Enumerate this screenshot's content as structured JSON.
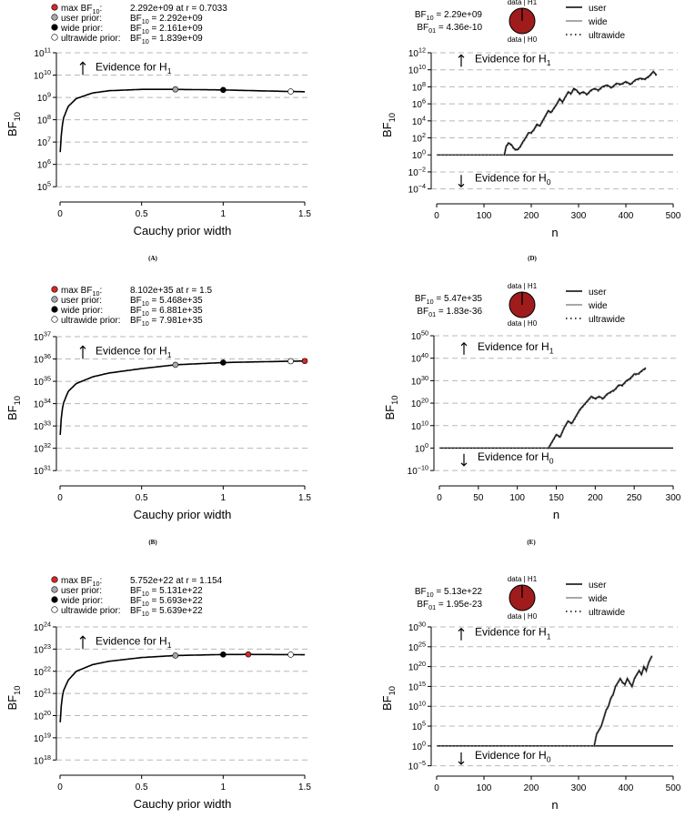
{
  "chart_data": [
    {
      "id": "A",
      "panel": "(A)",
      "type": "line",
      "kind": "robustness",
      "xlabel": "Cauchy prior width",
      "ylabel": "BF10",
      "xlim": [
        0,
        1.5
      ],
      "ylim_log10": [
        4.6,
        11
      ],
      "x_ticks": [
        "0",
        "0.5",
        "1",
        "1.5"
      ],
      "y_exponents": [
        5,
        6,
        7,
        8,
        9,
        10,
        11
      ],
      "evidence_label": "Evidence for H1",
      "legend": [
        {
          "label": "max BF10:",
          "value": "2.292e+09 at r = 0.7033",
          "color": "#d62728"
        },
        {
          "label": "user prior:",
          "value": "BF10 = 2.292e+09",
          "color": "#aaaaaa"
        },
        {
          "label": "wide prior:",
          "value": "BF10 = 2.161e+09",
          "color": "#000000"
        },
        {
          "label": "ultrawide prior:",
          "value": "BF10 = 1.839e+09",
          "color": "#ffffff"
        }
      ],
      "curve": {
        "r": [
          0.001,
          0.01,
          0.02,
          0.05,
          0.1,
          0.2,
          0.3,
          0.5,
          0.7033,
          1.0,
          1.2,
          1.414,
          1.5
        ],
        "log10_bf": [
          6.55,
          7.55,
          8.05,
          8.6,
          8.95,
          9.2,
          9.3,
          9.36,
          9.36,
          9.335,
          9.3,
          9.265,
          9.255
        ]
      },
      "points": [
        {
          "name": "max",
          "r": 0.7033,
          "log10_bf": 9.36,
          "color": "#d62728",
          "show": false
        },
        {
          "name": "user",
          "r": 0.7071,
          "log10_bf": 9.36,
          "color": "#aaaaaa",
          "show": true
        },
        {
          "name": "wide",
          "r": 1.0,
          "log10_bf": 9.335,
          "color": "#000000",
          "show": true
        },
        {
          "name": "ultrawide",
          "r": 1.414,
          "log10_bf": 9.265,
          "color": "#ffffff",
          "show": true
        }
      ]
    },
    {
      "id": "B",
      "panel": "(B)",
      "type": "line",
      "kind": "robustness",
      "xlabel": "Cauchy prior width",
      "ylabel": "BF10",
      "xlim": [
        0,
        1.5
      ],
      "ylim_log10": [
        30.6,
        37
      ],
      "x_ticks": [
        "0",
        "0.5",
        "1",
        "1.5"
      ],
      "y_exponents": [
        31,
        32,
        33,
        34,
        35,
        36,
        37
      ],
      "evidence_label": "Evidence for H1",
      "legend": [
        {
          "label": "max BF10:",
          "value": "8.102e+35 at r = 1.5",
          "color": "#d62728"
        },
        {
          "label": "user prior:",
          "value": "BF10 = 5.468e+35",
          "color": "#aaaaaa"
        },
        {
          "label": "wide prior:",
          "value": "BF10 = 6.881e+35",
          "color": "#000000"
        },
        {
          "label": "ultrawide prior:",
          "value": "BF10 = 7.981e+35",
          "color": "#ffffff"
        }
      ],
      "curve": {
        "r": [
          0.001,
          0.01,
          0.02,
          0.05,
          0.1,
          0.2,
          0.3,
          0.5,
          0.7071,
          1.0,
          1.2,
          1.414,
          1.5
        ],
        "log10_bf": [
          32.6,
          33.6,
          34.0,
          34.55,
          34.9,
          35.2,
          35.37,
          35.57,
          35.74,
          35.84,
          35.87,
          35.9,
          35.91
        ]
      },
      "points": [
        {
          "name": "max",
          "r": 1.5,
          "log10_bf": 35.91,
          "color": "#d62728",
          "show": true
        },
        {
          "name": "user",
          "r": 0.7071,
          "log10_bf": 35.74,
          "color": "#aaaaaa",
          "show": true
        },
        {
          "name": "wide",
          "r": 1.0,
          "log10_bf": 35.84,
          "color": "#000000",
          "show": true
        },
        {
          "name": "ultrawide",
          "r": 1.414,
          "log10_bf": 35.9,
          "color": "#ffffff",
          "show": true
        }
      ]
    },
    {
      "id": "C",
      "panel": "(C)",
      "type": "line",
      "kind": "robustness",
      "xlabel": "Cauchy prior width",
      "ylabel": "BF10",
      "xlim": [
        0,
        1.5
      ],
      "ylim_log10": [
        17.6,
        24
      ],
      "x_ticks": [
        "0",
        "0.5",
        "1",
        "1.5"
      ],
      "y_exponents": [
        18,
        19,
        20,
        21,
        22,
        23,
        24
      ],
      "evidence_label": "Evidence for H1",
      "legend": [
        {
          "label": "max BF10:",
          "value": "5.752e+22 at r = 1.154",
          "color": "#d62728"
        },
        {
          "label": "user prior:",
          "value": "BF10 = 5.131e+22",
          "color": "#aaaaaa"
        },
        {
          "label": "wide prior:",
          "value": "BF10 = 5.693e+22",
          "color": "#000000"
        },
        {
          "label": "ultrawide prior:",
          "value": "BF10 = 5.639e+22",
          "color": "#ffffff"
        }
      ],
      "curve": {
        "r": [
          0.001,
          0.01,
          0.02,
          0.05,
          0.1,
          0.2,
          0.3,
          0.5,
          0.7071,
          1.0,
          1.154,
          1.414,
          1.5
        ],
        "log10_bf": [
          19.7,
          20.7,
          21.1,
          21.6,
          22.0,
          22.3,
          22.45,
          22.62,
          22.71,
          22.755,
          22.76,
          22.751,
          22.745
        ]
      },
      "points": [
        {
          "name": "max",
          "r": 1.154,
          "log10_bf": 22.76,
          "color": "#d62728",
          "show": true
        },
        {
          "name": "user",
          "r": 0.7071,
          "log10_bf": 22.71,
          "color": "#aaaaaa",
          "show": true
        },
        {
          "name": "wide",
          "r": 1.0,
          "log10_bf": 22.755,
          "color": "#000000",
          "show": true
        },
        {
          "name": "ultrawide",
          "r": 1.414,
          "log10_bf": 22.751,
          "color": "#ffffff",
          "show": true
        }
      ]
    },
    {
      "id": "D",
      "panel": "(D)",
      "type": "line",
      "kind": "sequential",
      "xlabel": "n",
      "ylabel": "BF10",
      "xlim": [
        0,
        500
      ],
      "ylim_log10": [
        -5,
        12
      ],
      "x_ticks": [
        0,
        100,
        200,
        300,
        400,
        500
      ],
      "y_exponents": [
        -4,
        -2,
        0,
        2,
        4,
        6,
        8,
        10,
        12
      ],
      "evidence_h1": "Evidence for H1",
      "evidence_h0": "Evidence for H0",
      "h1_log10": 11,
      "h0_log10": -3,
      "bf10_text": "BF10 = 2.29e+09",
      "bf01_text": "BF01 = 4.36e-10",
      "pie_top": "data | H1",
      "pie_bottom": "data | H0",
      "pie_h1_fraction": 1.0,
      "legend": [
        "user",
        "wide",
        "ultrawide"
      ],
      "series": {
        "n_end": 465,
        "flat_until": 143,
        "n": [
          143,
          147,
          152,
          158,
          164,
          170,
          176,
          182,
          188,
          194,
          200,
          206,
          212,
          218,
          224,
          230,
          236,
          242,
          248,
          254,
          260,
          266,
          272,
          278,
          284,
          290,
          296,
          302,
          310,
          318,
          326,
          334,
          342,
          350,
          360,
          370,
          380,
          390,
          400,
          410,
          420,
          430,
          440,
          450,
          458,
          465
        ],
        "log10_bf": [
          0,
          1.0,
          1.4,
          1.2,
          0.7,
          0.6,
          0.9,
          1.5,
          2.0,
          2.6,
          2.6,
          3.0,
          3.6,
          3.4,
          4.0,
          4.6,
          5.2,
          5.0,
          5.5,
          6.0,
          6.6,
          6.2,
          6.8,
          7.4,
          7.2,
          7.8,
          7.6,
          7.2,
          7.4,
          7.1,
          7.6,
          7.8,
          7.6,
          8.0,
          8.2,
          7.9,
          8.4,
          8.3,
          8.6,
          8.3,
          8.8,
          9.0,
          8.9,
          9.3,
          9.8,
          9.36
        ]
      }
    },
    {
      "id": "E",
      "panel": "(E)",
      "type": "line",
      "kind": "sequential",
      "xlabel": "n",
      "ylabel": "BF10",
      "xlim": [
        0,
        300
      ],
      "ylim_log10": [
        -14,
        50
      ],
      "x_ticks": [
        0,
        50,
        100,
        150,
        200,
        250,
        300
      ],
      "y_exponents": [
        -10,
        0,
        10,
        20,
        30,
        40,
        50
      ],
      "evidence_h1": "Evidence for H1",
      "evidence_h0": "Evidence for H0",
      "h1_log10": 44,
      "h0_log10": -5,
      "bf10_text": "BF10 = 5.47e+35",
      "bf01_text": "BF01 = 1.83e-36",
      "pie_top": "data | H1",
      "pie_bottom": "data | H0",
      "pie_h1_fraction": 1.0,
      "legend": [
        "user",
        "wide",
        "ultrawide"
      ],
      "series": {
        "n_end": 265,
        "flat_until": 140,
        "n": [
          140,
          145,
          150,
          155,
          160,
          165,
          170,
          175,
          180,
          185,
          190,
          195,
          200,
          205,
          210,
          215,
          220,
          225,
          230,
          235,
          240,
          245,
          250,
          255,
          260,
          265
        ],
        "log10_bf": [
          0,
          3,
          6,
          5,
          9,
          12,
          11,
          14,
          17,
          19,
          21,
          23,
          22,
          23,
          22,
          24,
          25,
          26,
          28,
          28,
          30,
          31,
          33,
          33,
          34.5,
          35.7
        ]
      }
    },
    {
      "id": "F",
      "panel": "(F)",
      "type": "line",
      "kind": "sequential",
      "xlabel": "n",
      "ylabel": "BF10",
      "xlim": [
        0,
        500
      ],
      "ylim_log10": [
        -6,
        30
      ],
      "x_ticks": [
        0,
        100,
        200,
        300,
        400,
        500
      ],
      "y_exponents": [
        -5,
        0,
        5,
        10,
        15,
        20,
        25,
        30
      ],
      "evidence_h1": "Evidence for H1",
      "evidence_h0": "Evidence for H0",
      "h1_log10": 28,
      "h0_log10": -3,
      "bf10_text": "BF10 = 5.13e+22",
      "bf01_text": "BF01 = 1.95e-23",
      "pie_top": "data | H1",
      "pie_bottom": "data | H0",
      "pie_h1_fraction": 1.0,
      "legend": [
        "user",
        "wide",
        "ultrawide"
      ],
      "series": {
        "n_end": 455,
        "flat_until": 333,
        "n": [
          333,
          338,
          343,
          348,
          353,
          358,
          363,
          368,
          373,
          378,
          383,
          388,
          393,
          398,
          403,
          408,
          413,
          418,
          423,
          428,
          433,
          438,
          443,
          448,
          455
        ],
        "log10_bf": [
          0,
          3,
          4,
          5,
          7,
          9,
          10,
          12,
          13,
          15,
          16,
          17,
          16,
          15.5,
          17,
          16,
          15,
          17,
          18,
          19,
          18,
          20,
          19,
          21,
          22.7
        ]
      }
    }
  ]
}
